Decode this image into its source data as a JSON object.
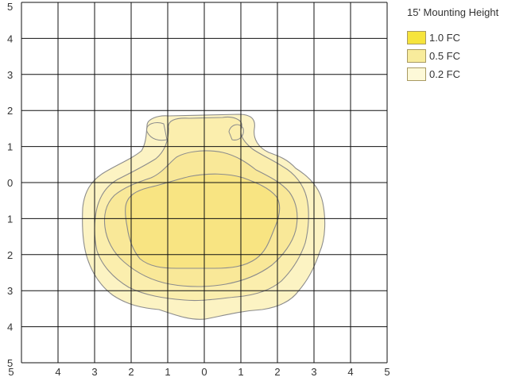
{
  "diagram": {
    "title": "15' Mounting Height",
    "y_ticks": [
      "5",
      "4",
      "3",
      "2",
      "1",
      "0",
      "1",
      "2",
      "3",
      "4",
      "5"
    ],
    "x_ticks": [
      "5",
      "4",
      "3",
      "2",
      "1",
      "0",
      "1",
      "2",
      "3",
      "4",
      "5"
    ],
    "legend": [
      {
        "label": "1.0 FC",
        "color": "#f6e43c"
      },
      {
        "label": "0.5 FC",
        "color": "#f8ec9c"
      },
      {
        "label": "0.2 FC",
        "color": "#fdf9d8"
      }
    ],
    "contour_fill_colors": [
      "#fcf3c3",
      "#fbeead",
      "#f9e898",
      "#f8e482"
    ],
    "contour_line_color": "#8c8c8c",
    "grid_color": "#111111"
  }
}
